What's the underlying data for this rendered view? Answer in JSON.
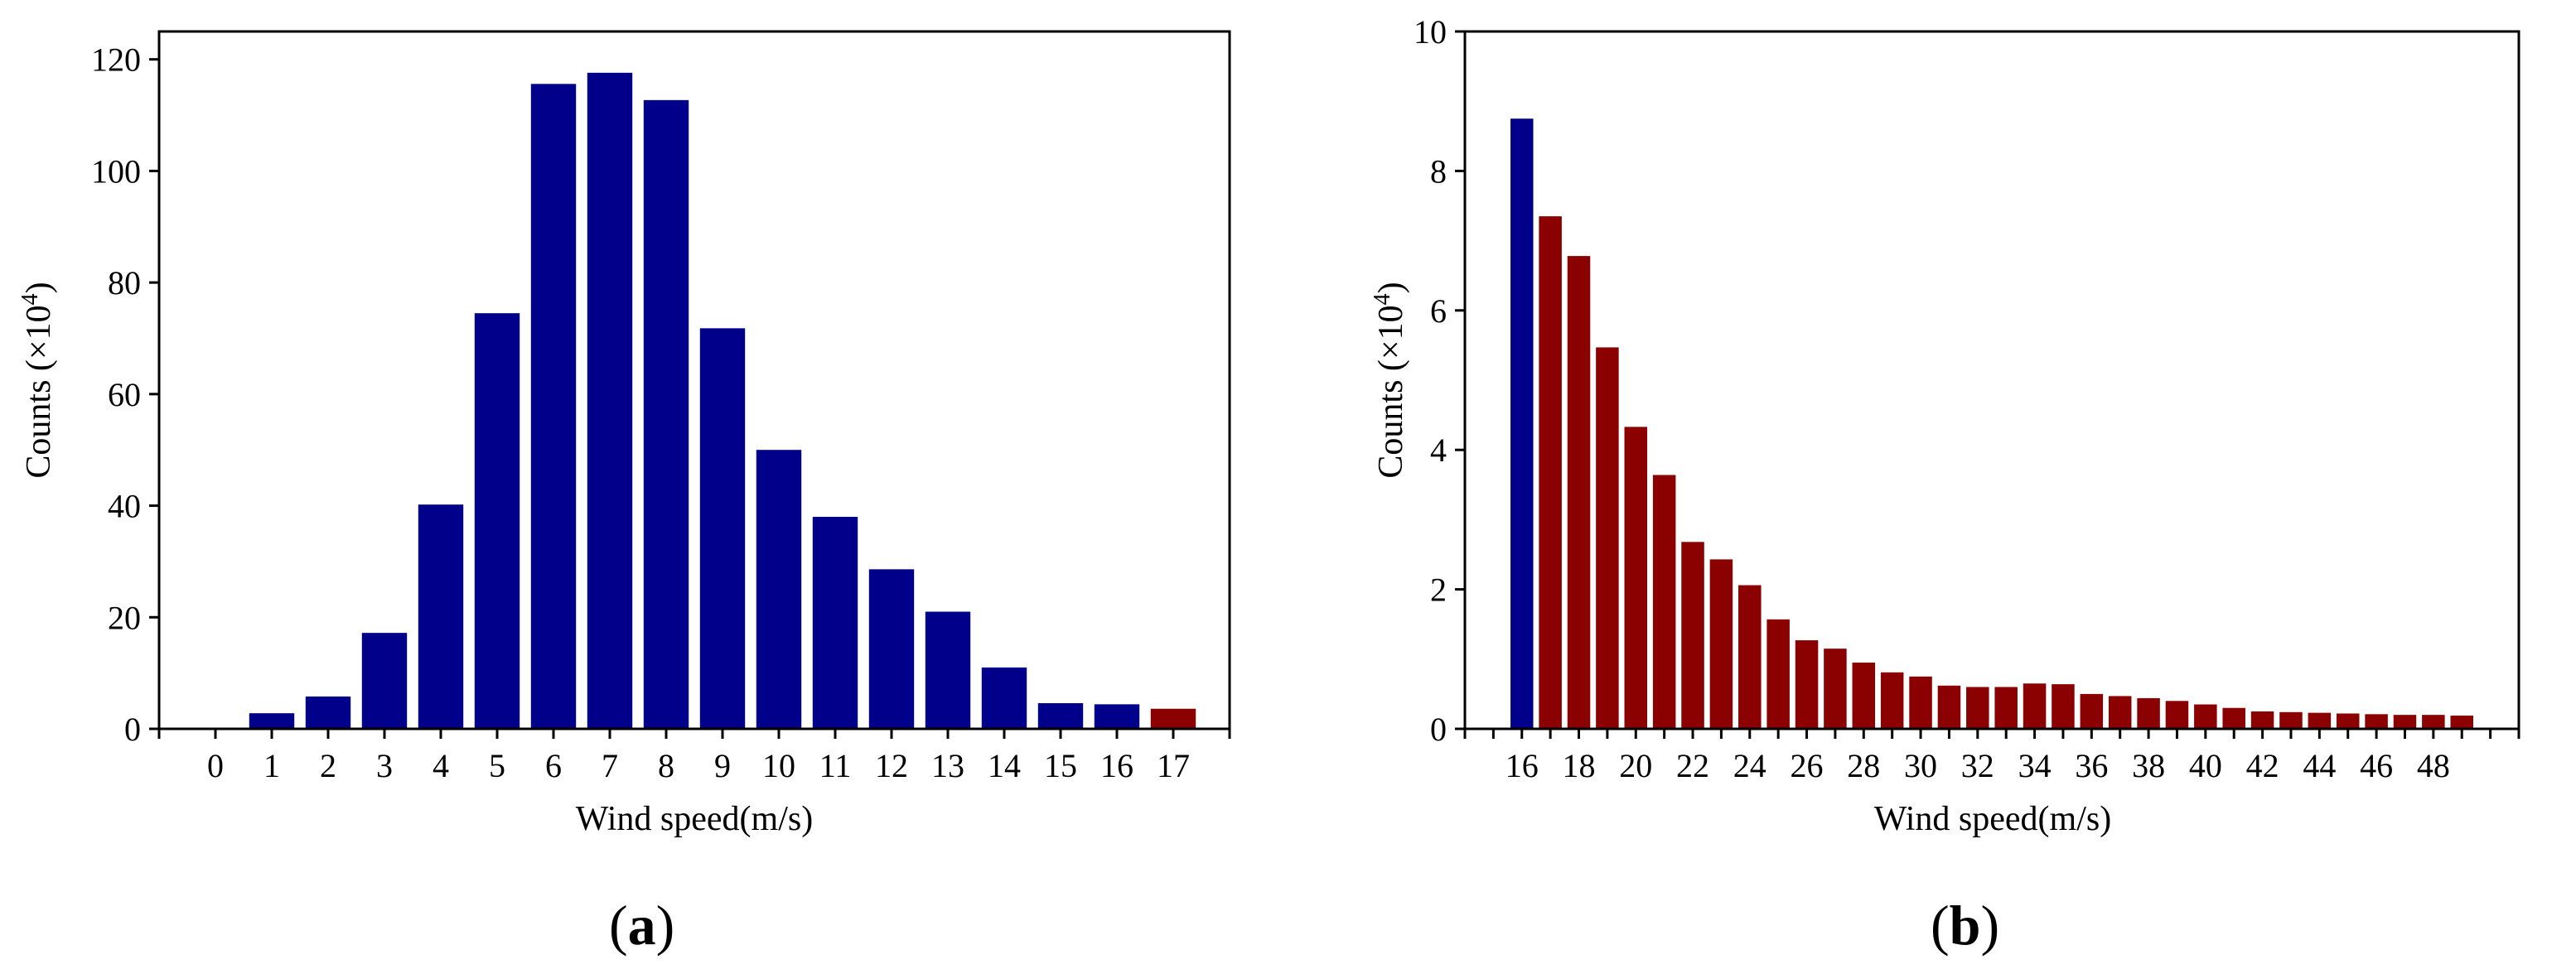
{
  "colors": {
    "primary": "#00008B",
    "highlight": "#8B0000",
    "axis": "#000000",
    "background": "#FFFFFF"
  },
  "chart_data": [
    {
      "panel": "a",
      "type": "bar",
      "caption_letter": "a",
      "xlabel": "Wind speed(m/s)",
      "ylabel_prefix": "Counts (×10",
      "ylabel_exp": "4",
      "ylabel_suffix": ")",
      "ylim": [
        0,
        125
      ],
      "xlim": [
        -1,
        18
      ],
      "yticks": [
        0,
        20,
        40,
        60,
        80,
        100,
        120
      ],
      "xtick_label_values": [
        0,
        1,
        2,
        3,
        4,
        5,
        6,
        7,
        8,
        9,
        10,
        11,
        12,
        13,
        14,
        15,
        16,
        17
      ],
      "xtick_marks": [
        -1,
        0,
        1,
        2,
        3,
        4,
        5,
        6,
        7,
        8,
        9,
        10,
        11,
        12,
        13,
        14,
        15,
        16,
        17,
        18
      ],
      "x": [
        0,
        1,
        2,
        3,
        4,
        5,
        6,
        7,
        8,
        9,
        10,
        11,
        12,
        13,
        14,
        15,
        16,
        17
      ],
      "values": [
        0,
        2.8,
        5.8,
        17.2,
        40.2,
        74.5,
        115.6,
        117.6,
        112.7,
        71.8,
        50.0,
        38.0,
        28.6,
        21.0,
        11.0,
        4.6,
        4.4,
        3.6
      ],
      "bar_colors": [
        "primary",
        "primary",
        "primary",
        "primary",
        "primary",
        "primary",
        "primary",
        "primary",
        "primary",
        "primary",
        "primary",
        "primary",
        "primary",
        "primary",
        "primary",
        "primary",
        "primary",
        "highlight"
      ],
      "bar_width": 0.8,
      "grid": false,
      "legend": false
    },
    {
      "panel": "b",
      "type": "bar",
      "caption_letter": "b",
      "xlabel": "Wind speed(m/s)",
      "ylabel_prefix": "Counts (×10",
      "ylabel_exp": "4",
      "ylabel_suffix": ")",
      "ylim": [
        0,
        10
      ],
      "xlim": [
        14,
        51
      ],
      "yticks": [
        0,
        2,
        4,
        6,
        8,
        10
      ],
      "xtick_label_values": [
        16,
        18,
        20,
        22,
        24,
        26,
        28,
        30,
        32,
        34,
        36,
        38,
        40,
        42,
        44,
        46,
        48
      ],
      "xtick_marks": [
        14,
        15,
        16,
        17,
        18,
        19,
        20,
        21,
        22,
        23,
        24,
        25,
        26,
        27,
        28,
        29,
        30,
        31,
        32,
        33,
        34,
        35,
        36,
        37,
        38,
        39,
        40,
        41,
        42,
        43,
        44,
        45,
        46,
        47,
        48,
        49,
        50,
        51
      ],
      "x": [
        16,
        17,
        18,
        19,
        20,
        21,
        22,
        23,
        24,
        25,
        26,
        27,
        28,
        29,
        30,
        31,
        32,
        33,
        34,
        35,
        36,
        37,
        38,
        39,
        40,
        41,
        42,
        43,
        44,
        45,
        46,
        47,
        48,
        49
      ],
      "values": [
        8.75,
        7.35,
        6.78,
        5.47,
        4.33,
        3.64,
        2.68,
        2.43,
        2.06,
        1.57,
        1.27,
        1.15,
        0.95,
        0.81,
        0.75,
        0.62,
        0.6,
        0.6,
        0.65,
        0.64,
        0.5,
        0.47,
        0.44,
        0.4,
        0.35,
        0.3,
        0.25,
        0.24,
        0.23,
        0.22,
        0.21,
        0.2,
        0.2,
        0.19
      ],
      "bar_colors": [
        "primary",
        "highlight",
        "highlight",
        "highlight",
        "highlight",
        "highlight",
        "highlight",
        "highlight",
        "highlight",
        "highlight",
        "highlight",
        "highlight",
        "highlight",
        "highlight",
        "highlight",
        "highlight",
        "highlight",
        "highlight",
        "highlight",
        "highlight",
        "highlight",
        "highlight",
        "highlight",
        "highlight",
        "highlight",
        "highlight",
        "highlight",
        "highlight",
        "highlight",
        "highlight",
        "highlight",
        "highlight",
        "highlight",
        "highlight"
      ],
      "bar_width": 0.8,
      "grid": false,
      "legend": false
    }
  ]
}
